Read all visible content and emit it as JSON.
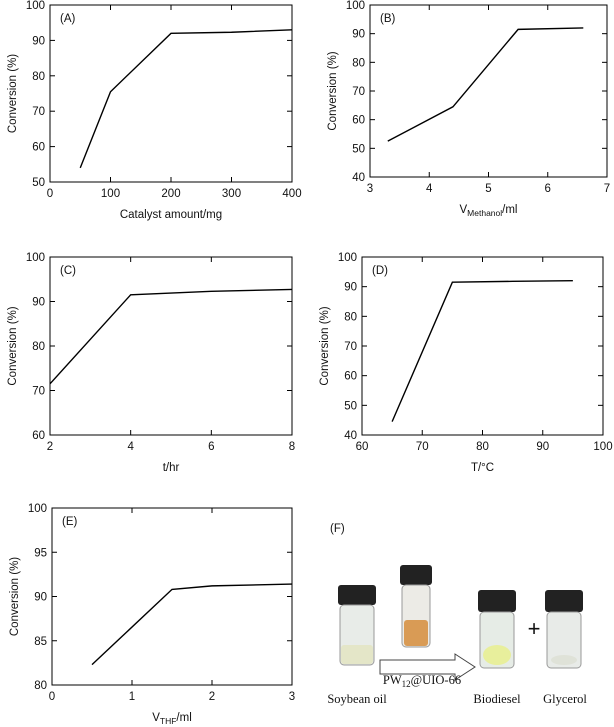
{
  "chart_data": [
    {
      "type": "line",
      "panel_label": "(A)",
      "x_label": "Catalyst amount/mg",
      "y_label": "Conversion (%)",
      "x": [
        50,
        100,
        200,
        300,
        400
      ],
      "values": [
        54,
        75.5,
        92,
        92.3,
        93
      ],
      "color": "#000000",
      "xlim": [
        0,
        400
      ],
      "xticks": [
        0,
        100,
        200,
        300,
        400
      ],
      "ylim": [
        50,
        100
      ],
      "yticks": [
        50,
        60,
        70,
        80,
        90,
        100
      ]
    },
    {
      "type": "line",
      "panel_label": "(B)",
      "x_label": {
        "base": "V",
        "sub": "Methanol",
        "unit": "/ml"
      },
      "y_label": "Conversion (%)",
      "x": [
        3.3,
        4.4,
        5.5,
        6.6
      ],
      "values": [
        52.5,
        64.5,
        91.5,
        92
      ],
      "color": "#000000",
      "xlim": [
        3,
        7
      ],
      "xticks": [
        3,
        4,
        5,
        6,
        7
      ],
      "ylim": [
        40,
        100
      ],
      "yticks": [
        40,
        50,
        60,
        70,
        80,
        90,
        100
      ]
    },
    {
      "type": "line",
      "panel_label": "(C)",
      "x_label": "t/hr",
      "y_label": "Conversion (%)",
      "x": [
        2,
        4,
        6,
        8
      ],
      "values": [
        71.5,
        91.5,
        92.3,
        92.7
      ],
      "color": "#000000",
      "xlim": [
        2,
        8
      ],
      "xticks": [
        2,
        4,
        6,
        8
      ],
      "ylim": [
        60,
        100
      ],
      "yticks": [
        60,
        70,
        80,
        90,
        100
      ]
    },
    {
      "type": "line",
      "panel_label": "(D)",
      "x_label": "T/°C",
      "y_label": "Conversion (%)",
      "x": [
        65,
        75,
        85,
        95
      ],
      "values": [
        44.5,
        91.5,
        91.8,
        92
      ],
      "color": "#000000",
      "xlim": [
        60,
        100
      ],
      "xticks": [
        60,
        70,
        80,
        90,
        100
      ],
      "ylim": [
        40,
        100
      ],
      "yticks": [
        40,
        50,
        60,
        70,
        80,
        90,
        100
      ]
    },
    {
      "type": "line",
      "panel_label": "(E)",
      "x_label": {
        "base": "V",
        "sub": "THF",
        "unit": "/ml"
      },
      "y_label": "Conversion (%)",
      "x": [
        0.5,
        1.5,
        2,
        3
      ],
      "values": [
        82.3,
        90.8,
        91.2,
        91.4
      ],
      "color": "#000000",
      "xlim": [
        0,
        3
      ],
      "xticks": [
        0,
        1,
        2,
        3
      ],
      "ylim": [
        80,
        100
      ],
      "yticks": [
        80,
        85,
        90,
        95,
        100
      ]
    }
  ],
  "panel_f": {
    "label": "(F)",
    "soybean_oil": "Soybean oil",
    "catalyst": {
      "base": "PW",
      "sub": "12",
      "rest": "@UIO-66"
    },
    "plus": "+",
    "biodiesel": "Biodiesel",
    "glycerol": "Glycerol"
  }
}
